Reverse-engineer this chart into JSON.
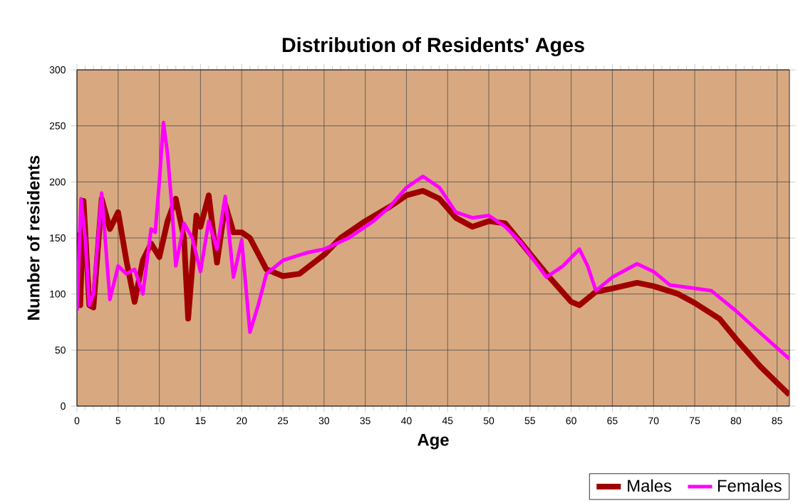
{
  "chart_data": {
    "type": "line",
    "title": "Distribution of Residents' Ages",
    "xlabel": "Age",
    "ylabel": "Number of residents",
    "xlim": [
      0,
      86.5
    ],
    "ylim": [
      0,
      300
    ],
    "xticks": [
      0,
      5,
      10,
      15,
      20,
      25,
      30,
      35,
      40,
      45,
      50,
      55,
      60,
      65,
      70,
      75,
      80,
      85
    ],
    "yticks": [
      0,
      50,
      100,
      150,
      200,
      250,
      300
    ],
    "grid": true,
    "legend": "bottom right",
    "line_style": "solid",
    "series": [
      {
        "name": "Males",
        "color": "#a00000",
        "x": [
          0,
          0.4,
          0.8,
          1.5,
          2,
          3,
          4,
          5,
          6,
          7,
          8,
          9,
          10,
          11,
          12,
          13,
          13.5,
          14.5,
          15,
          16,
          17,
          18,
          19,
          20,
          21,
          23,
          25,
          27,
          30,
          32,
          35,
          38,
          40,
          42,
          44,
          46,
          48,
          50,
          52,
          54,
          57,
          60,
          61,
          63,
          65,
          68,
          70,
          73,
          75,
          78,
          80,
          83,
          86.5
        ],
        "values": [
          155,
          90,
          183,
          90,
          88,
          185,
          158,
          173,
          130,
          93,
          130,
          145,
          133,
          165,
          185,
          150,
          78,
          170,
          160,
          188,
          128,
          180,
          155,
          155,
          150,
          122,
          116,
          118,
          135,
          150,
          165,
          178,
          188,
          192,
          185,
          168,
          160,
          165,
          163,
          145,
          118,
          93,
          90,
          102,
          105,
          110,
          107,
          100,
          92,
          78,
          60,
          35,
          10
        ]
      },
      {
        "name": "Females",
        "color": "#ff00ff",
        "x": [
          0,
          0.5,
          1,
          1.5,
          2,
          3,
          4,
          5,
          6,
          7,
          8,
          9,
          9.5,
          10,
          10.5,
          11,
          11.5,
          12,
          13,
          14,
          15,
          16,
          17,
          18,
          19,
          20,
          21,
          22,
          23,
          25,
          28,
          30,
          33,
          36,
          38,
          40,
          42,
          44,
          46,
          48,
          50,
          52,
          54,
          57,
          59,
          61,
          62,
          63,
          65,
          68,
          70,
          72,
          75,
          77,
          80,
          83,
          86.5
        ],
        "values": [
          85,
          185,
          150,
          90,
          100,
          190,
          95,
          125,
          118,
          122,
          100,
          158,
          155,
          200,
          253,
          225,
          180,
          125,
          163,
          150,
          120,
          165,
          140,
          187,
          115,
          148,
          66,
          90,
          118,
          130,
          137,
          140,
          150,
          165,
          178,
          195,
          205,
          195,
          173,
          168,
          170,
          160,
          145,
          115,
          125,
          140,
          125,
          103,
          115,
          127,
          120,
          108,
          105,
          103,
          85,
          65,
          42
        ]
      }
    ]
  }
}
